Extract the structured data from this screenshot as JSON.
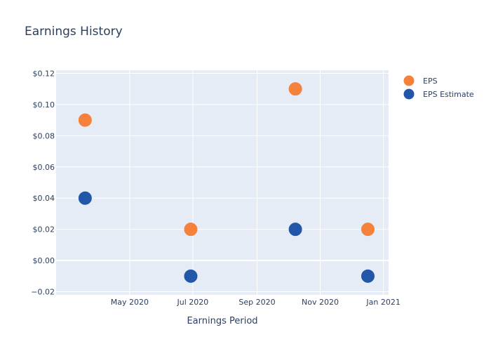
{
  "chart_data": {
    "type": "scatter",
    "title": "Earnings History",
    "xlabel": "Earnings Period",
    "ylabel": "",
    "x_axis_type": "date",
    "xlim": [
      "2020-02-20",
      "2021-01-06"
    ],
    "ylim": [
      -0.022,
      0.122
    ],
    "grid": true,
    "legend_position": "top-right",
    "x_ticks": [
      {
        "date": "2020-05-01",
        "label": "May 2020"
      },
      {
        "date": "2020-07-01",
        "label": "Jul 2020"
      },
      {
        "date": "2020-09-01",
        "label": "Sep 2020"
      },
      {
        "date": "2020-11-01",
        "label": "Nov 2020"
      },
      {
        "date": "2021-01-01",
        "label": "Jan 2021"
      }
    ],
    "y_ticks": [
      {
        "value": 0.12,
        "label": "$0.12"
      },
      {
        "value": 0.1,
        "label": "$0.10"
      },
      {
        "value": 0.08,
        "label": "$0.08"
      },
      {
        "value": 0.06,
        "label": "$0.06"
      },
      {
        "value": 0.04,
        "label": "$0.04"
      },
      {
        "value": 0.02,
        "label": "$0.02"
      },
      {
        "value": 0.0,
        "label": "$0.00"
      },
      {
        "value": -0.02,
        "label": "−0.02"
      }
    ],
    "series": [
      {
        "name": "EPS",
        "color": "#f5813a",
        "points": [
          {
            "x": "2020-03-19",
            "y": 0.09
          },
          {
            "x": "2020-06-29",
            "y": 0.02
          },
          {
            "x": "2020-10-08",
            "y": 0.11
          },
          {
            "x": "2020-12-17",
            "y": 0.02
          }
        ]
      },
      {
        "name": "EPS Estimate",
        "color": "#2256a8",
        "points": [
          {
            "x": "2020-03-19",
            "y": 0.04
          },
          {
            "x": "2020-06-29",
            "y": -0.01
          },
          {
            "x": "2020-10-08",
            "y": 0.02
          },
          {
            "x": "2020-12-17",
            "y": -0.01
          }
        ]
      }
    ]
  }
}
